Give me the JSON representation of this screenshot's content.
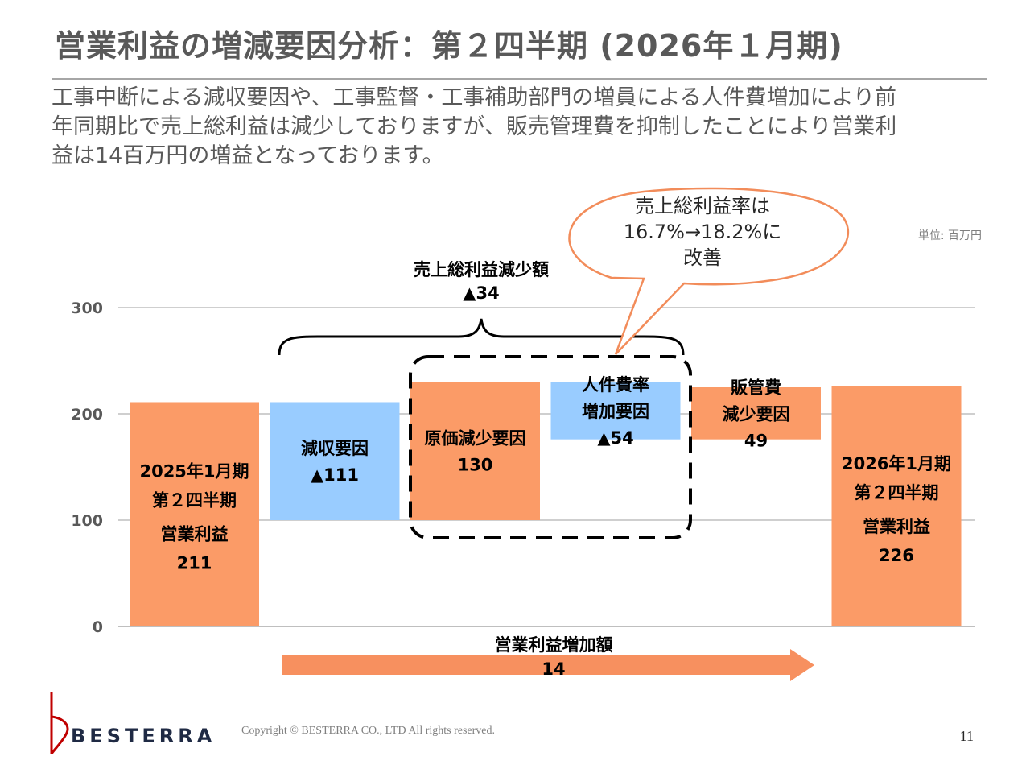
{
  "slide": {
    "title": "営業利益の増減要因分析：第２四半期 (2026年１月期)",
    "lead_lines": [
      "工事中断による減収要因や、工事監督・工事補助部門の増員による人件費増加により前",
      "年同期比で売上総利益は減少しておりますが、販売管理費を抑制したことにより営業利",
      "益は14百万円の増益となっております。"
    ],
    "unit": "単位: 百万円",
    "callout_lines": [
      "売上総利益率は",
      "16.7%→18.2%に",
      "改善"
    ],
    "gross_profit_note": {
      "title": "売上総利益減少額",
      "value": "▲34"
    },
    "operating_profit_note": {
      "title": "営業利益増加額",
      "value": "14"
    },
    "footer": {
      "brand": "BESTERRA",
      "copyright": "Copyright © BESTERRA CO., LTD All rights reserved.",
      "page": "11"
    }
  },
  "colors": {
    "orange": "#fb9b67",
    "blue": "#99ccff",
    "arrow": "#f7905f",
    "callout_border": "#f28c5a",
    "grid": "#bfbfbf",
    "logo_red": "#c00000"
  },
  "chart_data": {
    "type": "bar",
    "subtype": "waterfall",
    "unit": "百万円",
    "ylim": [
      0,
      300
    ],
    "yticks": [
      0,
      100,
      200,
      300
    ],
    "grid": true,
    "bars": [
      {
        "id": "prev",
        "base": 0,
        "top": 211,
        "color": "orange",
        "label_lines": [
          "2025年1月期",
          "第２四半期",
          "営業利益",
          "211"
        ]
      },
      {
        "id": "revenue",
        "base": 100,
        "top": 211,
        "color": "blue",
        "label_lines": [
          "減収要因",
          "▲111"
        ]
      },
      {
        "id": "cost",
        "base": 100,
        "top": 230,
        "color": "orange",
        "label_lines": [
          "原価減少要因",
          "130"
        ]
      },
      {
        "id": "personnel",
        "base": 176,
        "top": 230,
        "color": "blue",
        "label_lines": [
          "人件費率",
          "増加要因",
          "▲54"
        ]
      },
      {
        "id": "sga",
        "base": 176,
        "top": 225,
        "color": "orange",
        "label_lines": [
          "販管費",
          "減少要因",
          "49"
        ]
      },
      {
        "id": "current",
        "base": 0,
        "top": 226,
        "color": "orange",
        "label_lines": [
          "2026年1月期",
          "第２四半期",
          "営業利益",
          "226"
        ]
      }
    ]
  }
}
